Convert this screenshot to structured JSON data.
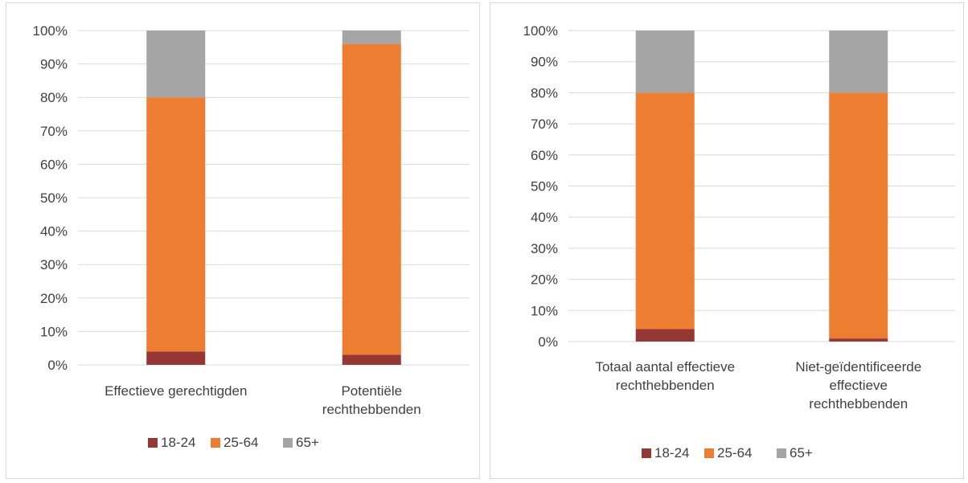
{
  "colors": {
    "s18_24": "#953735",
    "s25_64": "#ed7d31",
    "s65plus": "#a5a5a5",
    "grid": "#d9d9d9",
    "text": "#404040"
  },
  "chart_data": [
    {
      "type": "bar",
      "stacked": "percent",
      "categories": [
        [
          "Effectieve gerechtigden"
        ],
        [
          "Potentiële",
          "rechthebbenden"
        ]
      ],
      "series": [
        {
          "name": "18-24",
          "values": [
            4,
            3
          ]
        },
        {
          "name": "25-64",
          "values": [
            76,
            93
          ]
        },
        {
          "name": "65+",
          "values": [
            20,
            4
          ]
        }
      ],
      "ylim": [
        0,
        100
      ],
      "yticks": [
        "0%",
        "10%",
        "20%",
        "30%",
        "40%",
        "50%",
        "60%",
        "70%",
        "80%",
        "90%",
        "100%"
      ],
      "grid": true,
      "legend": "bottom"
    },
    {
      "type": "bar",
      "stacked": "percent",
      "categories": [
        [
          "Totaal aantal effectieve",
          "rechthebbenden"
        ],
        [
          "Niet-geïdentificeerde",
          "effectieve",
          "rechthebbenden"
        ]
      ],
      "series": [
        {
          "name": "18-24",
          "values": [
            4,
            1
          ]
        },
        {
          "name": "25-64",
          "values": [
            76,
            79
          ]
        },
        {
          "name": "65+",
          "values": [
            20,
            20
          ]
        }
      ],
      "ylim": [
        0,
        100
      ],
      "yticks": [
        "0%",
        "10%",
        "20%",
        "30%",
        "40%",
        "50%",
        "60%",
        "70%",
        "80%",
        "90%",
        "100%"
      ],
      "grid": true,
      "legend": "bottom"
    }
  ]
}
